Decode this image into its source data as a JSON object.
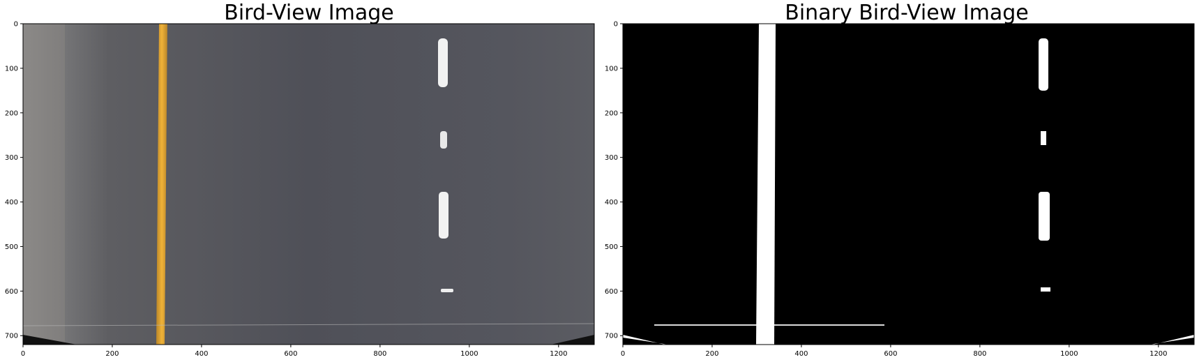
{
  "panels": [
    {
      "title": "Bird-View Image",
      "image_description": "Top-down warped road view: grey asphalt, solid yellow left lane line, dashed white right lane markings",
      "x_ticks": [
        "0",
        "200",
        "400",
        "600",
        "800",
        "1000",
        "1200"
      ],
      "y_ticks": [
        "0",
        "100",
        "200",
        "300",
        "400",
        "500",
        "600",
        "700"
      ],
      "colors": {
        "asphalt": "#55565e",
        "yellow_line": "#e2a530",
        "white_dash": "#f2f2f2"
      }
    },
    {
      "title": "Binary Bird-View Image",
      "image_description": "Thresholded binary version: black background with white lane pixels",
      "x_ticks": [
        "0",
        "200",
        "400",
        "600",
        "800",
        "1000",
        "1200"
      ],
      "y_ticks": [
        "0",
        "100",
        "200",
        "300",
        "400",
        "500",
        "600",
        "700"
      ],
      "colors": {
        "background": "#000000",
        "foreground": "#ffffff"
      }
    }
  ]
}
